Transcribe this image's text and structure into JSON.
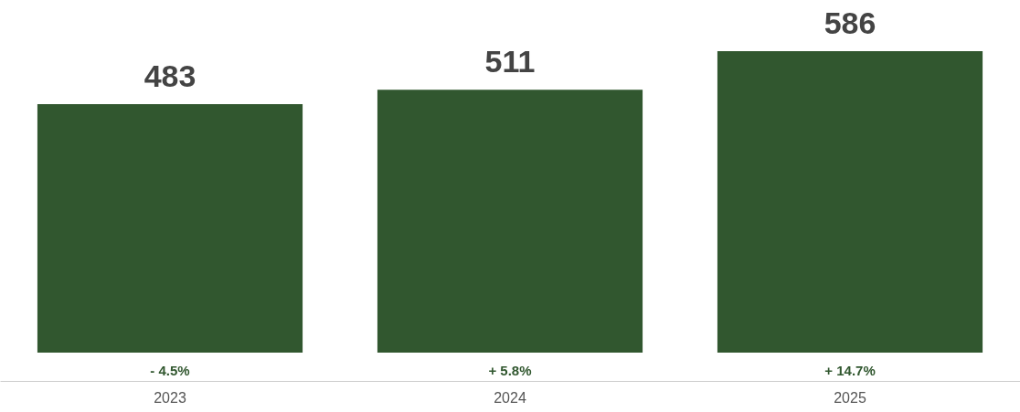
{
  "chart_data": {
    "type": "bar",
    "categories": [
      "2023",
      "2024",
      "2025"
    ],
    "values": [
      483,
      511,
      586
    ],
    "color": "#31572f",
    "data_labels": true,
    "grid": false,
    "annotations": [
      "- 4.5%",
      "+ 5.8%",
      "+ 14.7%"
    ]
  }
}
